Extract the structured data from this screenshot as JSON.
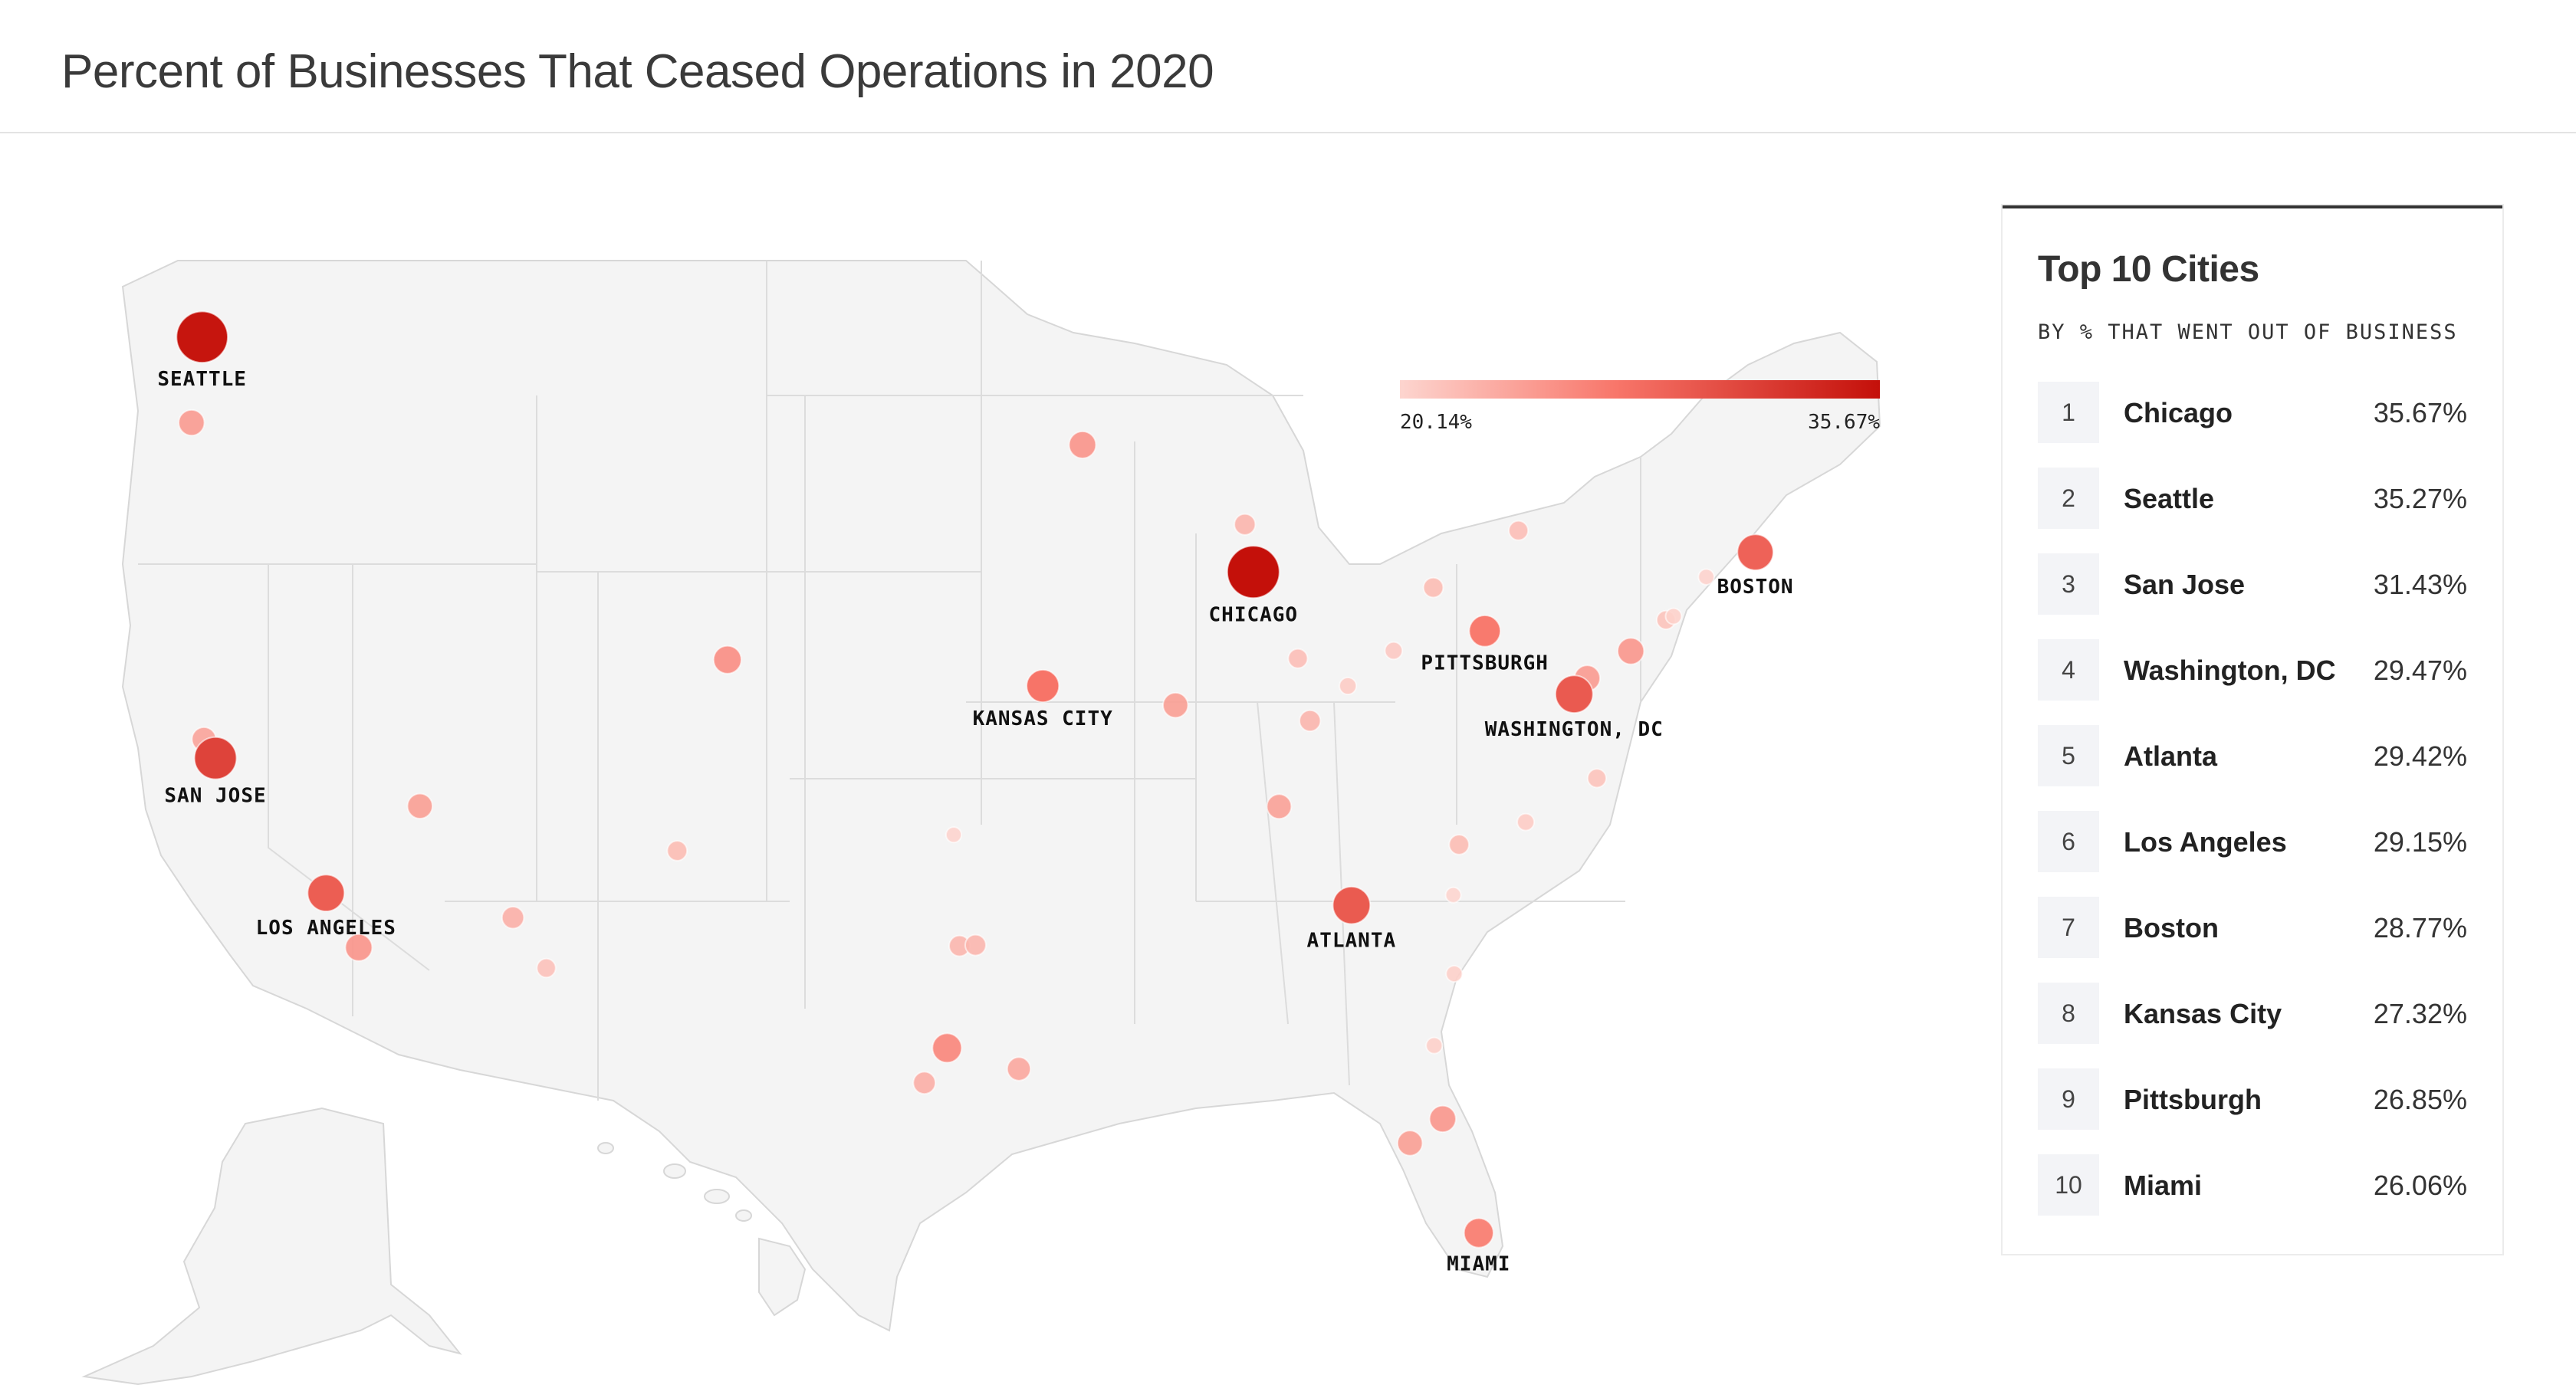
{
  "title": "Percent of Businesses That Ceased Operations in 2020",
  "legend": {
    "min": "20.14%",
    "max": "35.67%",
    "colors": [
      "#fdd5cf",
      "#f8766a",
      "#c4100a"
    ]
  },
  "labeled_cities": [
    {
      "name": "SEATTLE",
      "value": 35.27,
      "lon": -122.33,
      "lat": 47.61
    },
    {
      "name": "SAN JOSE",
      "value": 31.43,
      "lon": -121.89,
      "lat": 37.34
    },
    {
      "name": "LOS ANGELES",
      "value": 29.15,
      "lon": -118.24,
      "lat": 34.05
    },
    {
      "name": "CHICAGO",
      "value": 35.67,
      "lon": -87.63,
      "lat": 41.88
    },
    {
      "name": "KANSAS CITY",
      "value": 27.32,
      "lon": -94.58,
      "lat": 39.1
    },
    {
      "name": "PITTSBURGH",
      "value": 26.85,
      "lon": -79.99,
      "lat": 40.44
    },
    {
      "name": "WASHINGTON, DC",
      "value": 29.47,
      "lon": -77.04,
      "lat": 38.9
    },
    {
      "name": "BOSTON",
      "value": 28.77,
      "lon": -71.06,
      "lat": 42.36
    },
    {
      "name": "ATLANTA",
      "value": 29.42,
      "lon": -84.39,
      "lat": 33.75
    },
    {
      "name": "MIAMI",
      "value": 26.06,
      "lon": -80.19,
      "lat": 25.76
    }
  ],
  "other_cities": [
    {
      "lon": -122.68,
      "lat": 45.52,
      "value": 24.5
    },
    {
      "lon": -122.27,
      "lat": 37.8,
      "value": 23.8
    },
    {
      "lon": -117.16,
      "lat": 32.72,
      "value": 25.0
    },
    {
      "lon": -115.14,
      "lat": 36.17,
      "value": 24.2
    },
    {
      "lon": -112.07,
      "lat": 33.45,
      "value": 22.9
    },
    {
      "lon": -110.97,
      "lat": 32.22,
      "value": 21.6
    },
    {
      "lon": -104.99,
      "lat": 39.74,
      "value": 25.4
    },
    {
      "lon": -106.65,
      "lat": 35.08,
      "value": 22.0
    },
    {
      "lon": -93.27,
      "lat": 44.98,
      "value": 25.0
    },
    {
      "lon": -87.91,
      "lat": 43.04,
      "value": 22.5
    },
    {
      "lon": -90.2,
      "lat": 38.63,
      "value": 24.2
    },
    {
      "lon": -97.52,
      "lat": 35.47,
      "value": 20.2
    },
    {
      "lon": -97.33,
      "lat": 32.76,
      "value": 22.4
    },
    {
      "lon": -96.8,
      "lat": 32.78,
      "value": 22.4
    },
    {
      "lon": -97.74,
      "lat": 30.27,
      "value": 26.0
    },
    {
      "lon": -98.49,
      "lat": 29.42,
      "value": 23.0
    },
    {
      "lon": -95.37,
      "lat": 29.76,
      "value": 23.5
    },
    {
      "lon": -86.16,
      "lat": 39.77,
      "value": 21.8
    },
    {
      "lon": -84.51,
      "lat": 39.1,
      "value": 20.8
    },
    {
      "lon": -85.76,
      "lat": 38.25,
      "value": 22.5
    },
    {
      "lon": -86.78,
      "lat": 36.16,
      "value": 24.0
    },
    {
      "lon": -83.0,
      "lat": 39.96,
      "value": 21.0
    },
    {
      "lon": -81.69,
      "lat": 41.5,
      "value": 22.0
    },
    {
      "lon": -78.88,
      "lat": 42.89,
      "value": 21.8
    },
    {
      "lon": -76.61,
      "lat": 39.29,
      "value": 24.5
    },
    {
      "lon": -75.17,
      "lat": 39.95,
      "value": 24.8
    },
    {
      "lon": -74.01,
      "lat": 40.71,
      "value": 21.5
    },
    {
      "lon": -73.76,
      "lat": 40.8,
      "value": 20.4
    },
    {
      "lon": -72.68,
      "lat": 41.76,
      "value": 20.3
    },
    {
      "lon": -76.29,
      "lat": 36.85,
      "value": 21.5
    },
    {
      "lon": -78.64,
      "lat": 35.78,
      "value": 20.8
    },
    {
      "lon": -80.84,
      "lat": 35.23,
      "value": 22.0
    },
    {
      "lon": -81.03,
      "lat": 34.0,
      "value": 20.1
    },
    {
      "lon": -81.0,
      "lat": 32.08,
      "value": 20.5
    },
    {
      "lon": -81.66,
      "lat": 30.33,
      "value": 20.5
    },
    {
      "lon": -81.38,
      "lat": 28.54,
      "value": 24.8
    },
    {
      "lon": -82.46,
      "lat": 27.95,
      "value": 24.2
    }
  ],
  "panel": {
    "title": "Top 10 Cities",
    "subtitle": "BY % THAT WENT OUT OF BUSINESS",
    "rows": [
      {
        "rank": "1",
        "city": "Chicago",
        "value": "35.67%"
      },
      {
        "rank": "2",
        "city": "Seattle",
        "value": "35.27%"
      },
      {
        "rank": "3",
        "city": "San Jose",
        "value": "31.43%"
      },
      {
        "rank": "4",
        "city": "Washington, DC",
        "value": "29.47%"
      },
      {
        "rank": "5",
        "city": "Atlanta",
        "value": "29.42%"
      },
      {
        "rank": "6",
        "city": "Los Angeles",
        "value": "29.15%"
      },
      {
        "rank": "7",
        "city": "Boston",
        "value": "28.77%"
      },
      {
        "rank": "8",
        "city": "Kansas City",
        "value": "27.32%"
      },
      {
        "rank": "9",
        "city": "Pittsburgh",
        "value": "26.85%"
      },
      {
        "rank": "10",
        "city": "Miami",
        "value": "26.06%"
      }
    ]
  }
}
